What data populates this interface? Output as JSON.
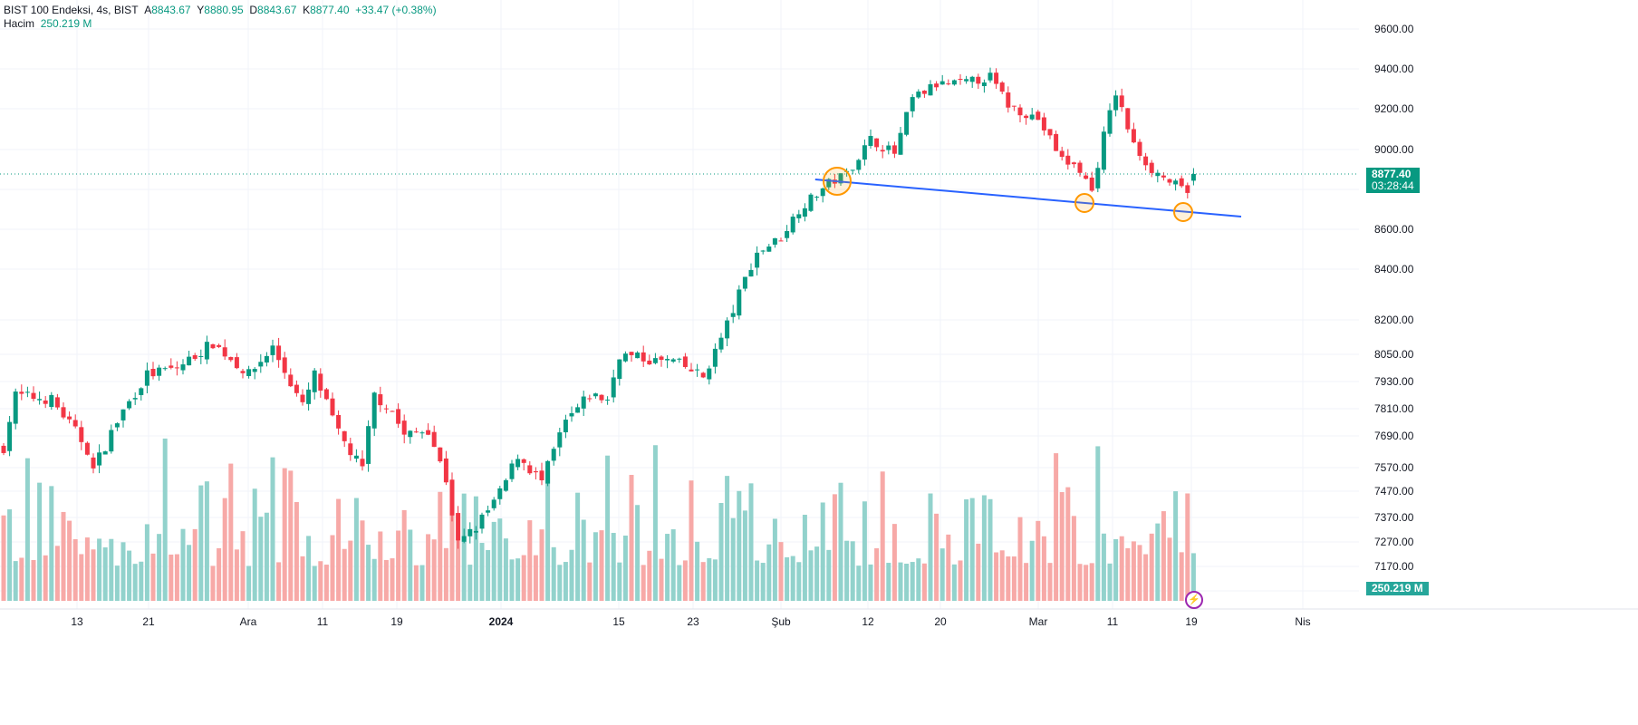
{
  "legend": {
    "symbol": "BIST 100 Endeksi, 4s, BIST",
    "open_label": "A",
    "open": "8843.67",
    "high_label": "Y",
    "high": "8880.95",
    "low_label": "D",
    "low": "8843.67",
    "close_label": "K",
    "close": "8877.40",
    "change": "+33.47 (+0.38%)",
    "volume_label": "Hacim",
    "volume": "250.219 M"
  },
  "price_badge": {
    "price": "8877.40",
    "countdown": "03:28:44"
  },
  "volume_badge": "250.219 M",
  "colors": {
    "up": "#089981",
    "down": "#f23645",
    "vol_up": "#92d2cc",
    "vol_down": "#f7a9a7",
    "trendline": "#2962ff",
    "marker": "#ff9800"
  },
  "chart_data": {
    "type": "candlestick",
    "y_ticks": [
      "9600.00",
      "9400.00",
      "9200.00",
      "9000.00",
      "8600.00",
      "8400.00",
      "8200.00",
      "8050.00",
      "7930.00",
      "7810.00",
      "7690.00",
      "7570.00",
      "7470.00",
      "7370.00",
      "7270.00",
      "7170.00"
    ],
    "x_ticks": [
      "13",
      "21",
      "Ara",
      "11",
      "19",
      "2024",
      "15",
      "23",
      "Şub",
      "12",
      "20",
      "Mar",
      "11",
      "19",
      "Nis"
    ],
    "close_waypoints": [
      [
        0,
        7650
      ],
      [
        2,
        7870
      ],
      [
        8,
        7850
      ],
      [
        14,
        7640
      ],
      [
        15,
        7560
      ],
      [
        20,
        7800
      ],
      [
        24,
        7960
      ],
      [
        29,
        7990
      ],
      [
        35,
        8100
      ],
      [
        41,
        7960
      ],
      [
        45,
        8080
      ],
      [
        50,
        7820
      ],
      [
        52,
        7960
      ],
      [
        56,
        7700
      ],
      [
        60,
        7560
      ],
      [
        62,
        7870
      ],
      [
        65,
        7800
      ],
      [
        67,
        7690
      ],
      [
        71,
        7720
      ],
      [
        74,
        7520
      ],
      [
        76,
        7260
      ],
      [
        79,
        7330
      ],
      [
        83,
        7460
      ],
      [
        86,
        7620
      ],
      [
        90,
        7510
      ],
      [
        94,
        7750
      ],
      [
        98,
        7870
      ],
      [
        101,
        7850
      ],
      [
        103,
        8050
      ],
      [
        109,
        8020
      ],
      [
        112,
        8020
      ],
      [
        117,
        7950
      ],
      [
        120,
        8120
      ],
      [
        123,
        8300
      ],
      [
        126,
        8480
      ],
      [
        130,
        8560
      ],
      [
        133,
        8700
      ],
      [
        138,
        8830
      ],
      [
        141,
        8880
      ],
      [
        145,
        9050
      ],
      [
        149,
        8980
      ],
      [
        152,
        9250
      ],
      [
        156,
        9320
      ],
      [
        161,
        9330
      ],
      [
        165,
        9360
      ],
      [
        168,
        9220
      ],
      [
        173,
        9150
      ],
      [
        177,
        8950
      ],
      [
        180,
        8900
      ],
      [
        182,
        8790
      ],
      [
        184,
        9070
      ],
      [
        186,
        9280
      ],
      [
        189,
        9020
      ],
      [
        192,
        8900
      ],
      [
        197,
        8800
      ],
      [
        198,
        8770
      ],
      [
        199,
        8877
      ]
    ],
    "volume_range_M": [
      150,
      560
    ],
    "last_volume_M": 250.219,
    "trendline": [
      [
        138,
        8840
      ],
      [
        207,
        8680
      ]
    ],
    "markers": [
      140,
      181,
      198
    ]
  }
}
